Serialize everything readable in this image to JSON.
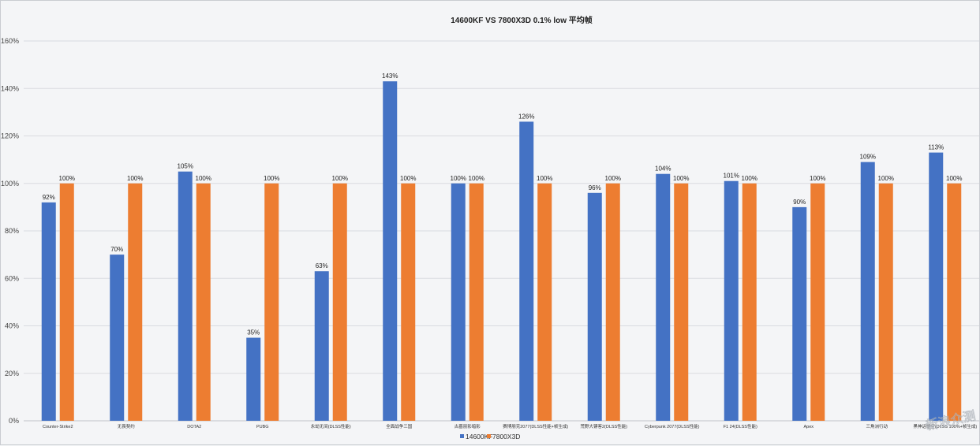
{
  "chart_data": {
    "type": "bar",
    "title": "14600KF  VS  7800X3D   0.1% low 平均帧",
    "categories": [
      "Counter-Strike2",
      "无畏契约",
      "DOTA2",
      "PUBG",
      "永劫无间(DLSS性能)",
      "全面战争三国",
      "古墓丽影暗影",
      "赛博朋克2077(DLSS性能+帧生成)",
      "荒野大镖客2(DLSS性能)",
      "Cyberpunk 2077(DLSS性能)",
      "F1 24(DLSS性能)",
      "Apex",
      "三角洲行动",
      "黑神话悟空(DLSS 100%+帧生成)"
    ],
    "series": [
      {
        "name": "14600KF",
        "values": [
          92,
          70,
          105,
          35,
          63,
          143,
          100,
          126,
          96,
          104,
          101,
          90,
          109,
          113
        ],
        "color": "#4472c4"
      },
      {
        "name": "7800X3D",
        "values": [
          100,
          100,
          100,
          100,
          100,
          100,
          100,
          100,
          100,
          100,
          100,
          100,
          100,
          100
        ],
        "color": "#ed7d31"
      }
    ],
    "ylim": [
      0,
      160
    ],
    "yticks": [
      "0%",
      "20%",
      "40%",
      "60%",
      "80%",
      "100%",
      "120%",
      "140%",
      "160%"
    ],
    "value_suffix": "%",
    "grid": true,
    "legend": "bottom-center"
  },
  "watermark": "新浪众测"
}
